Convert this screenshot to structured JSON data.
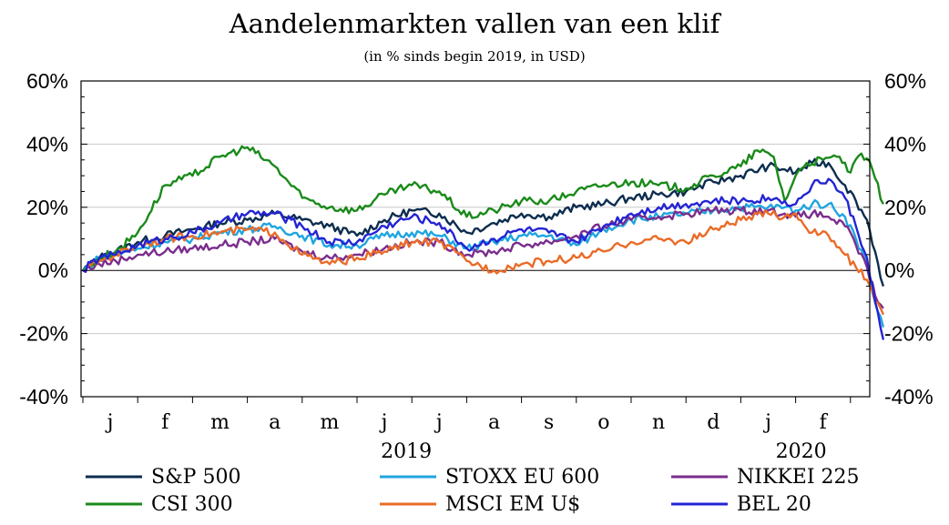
{
  "chart_data": {
    "type": "line",
    "title": "Aandelenmarkten vallen van een klif",
    "subtitle": "(in % sinds begin 2019, in USD)",
    "xlabel": "",
    "ylabel": "",
    "ylim": [
      -40,
      60
    ],
    "y_ticks": [
      60,
      40,
      20,
      0,
      -20,
      -40
    ],
    "y_tick_labels": [
      "60%",
      "40%",
      "20%",
      "0%",
      "-20%",
      "-40%"
    ],
    "grid": true,
    "legend_position": "bottom",
    "month_labels": [
      "j",
      "f",
      "m",
      "a",
      "m",
      "j",
      "j",
      "a",
      "s",
      "o",
      "n",
      "d",
      "j",
      "f"
    ],
    "year_labels": [
      "2019",
      "2020"
    ],
    "x_month_range": [
      0,
      14.6
    ],
    "series": [
      {
        "name": "S&P 500",
        "color": "#0d2d4f",
        "x": [
          0.0,
          0.3,
          0.6,
          1.0,
          1.5,
          2.0,
          2.5,
          3.0,
          3.5,
          4.0,
          4.5,
          5.0,
          5.5,
          6.0,
          6.5,
          7.0,
          7.5,
          8.0,
          8.5,
          9.0,
          9.5,
          10.0,
          10.5,
          11.0,
          11.5,
          12.0,
          12.5,
          12.8,
          13.0,
          13.3,
          13.6,
          13.9,
          14.1,
          14.3,
          14.45,
          14.6
        ],
        "y": [
          0,
          4,
          6,
          9,
          11,
          13,
          15,
          16,
          18,
          16,
          14,
          11,
          16,
          19,
          18,
          12,
          15,
          18,
          17,
          20,
          21,
          23,
          24,
          25,
          28,
          30,
          33,
          32,
          31,
          34,
          34,
          27,
          22,
          16,
          6,
          -5
        ]
      },
      {
        "name": "STOXX EU 600",
        "color": "#1fa5e0",
        "x": [
          0.0,
          0.3,
          0.6,
          1.0,
          1.5,
          2.0,
          2.5,
          3.0,
          3.5,
          4.0,
          4.5,
          5.0,
          5.5,
          6.0,
          6.5,
          7.0,
          7.5,
          8.0,
          8.5,
          9.0,
          9.5,
          10.0,
          10.5,
          11.0,
          11.5,
          12.0,
          12.5,
          12.8,
          13.0,
          13.3,
          13.6,
          13.9,
          14.1,
          14.3,
          14.45,
          14.6
        ],
        "y": [
          0,
          4,
          5,
          7,
          9,
          10,
          12,
          13,
          14,
          11,
          8,
          8,
          11,
          12,
          11,
          7,
          9,
          11,
          11,
          8,
          13,
          16,
          17,
          18,
          19,
          20,
          20,
          20,
          19,
          21,
          21,
          17,
          10,
          2,
          -10,
          -18
        ]
      },
      {
        "name": "NIKKEI 225",
        "color": "#7b2d8e",
        "x": [
          0.0,
          0.3,
          0.6,
          1.0,
          1.5,
          2.0,
          2.5,
          3.0,
          3.5,
          4.0,
          4.5,
          5.0,
          5.5,
          6.0,
          6.5,
          7.0,
          7.5,
          8.0,
          8.5,
          9.0,
          9.5,
          10.0,
          10.5,
          11.0,
          11.5,
          12.0,
          12.5,
          12.8,
          13.0,
          13.3,
          13.6,
          13.9,
          14.1,
          14.3,
          14.45,
          14.6
        ],
        "y": [
          0,
          2,
          3,
          5,
          6,
          7,
          8,
          9,
          10,
          6,
          4,
          5,
          7,
          9,
          9,
          5,
          6,
          8,
          9,
          11,
          14,
          16,
          17,
          18,
          19,
          19,
          19,
          18,
          17,
          18,
          17,
          14,
          8,
          1,
          -8,
          -12
        ]
      },
      {
        "name": "CSI 300",
        "color": "#1a8a1a",
        "x": [
          0.0,
          0.3,
          0.6,
          1.0,
          1.5,
          2.0,
          2.5,
          3.0,
          3.5,
          4.0,
          4.5,
          5.0,
          5.5,
          6.0,
          6.5,
          7.0,
          7.5,
          8.0,
          8.5,
          9.0,
          9.5,
          10.0,
          10.5,
          11.0,
          11.5,
          12.0,
          12.3,
          12.6,
          12.8,
          13.0,
          13.2,
          13.5,
          13.8,
          14.0,
          14.2,
          14.4,
          14.6
        ],
        "y": [
          0,
          4,
          6,
          12,
          27,
          30,
          36,
          39,
          33,
          23,
          20,
          19,
          24,
          27,
          25,
          17,
          19,
          22,
          22,
          25,
          27,
          28,
          27,
          26,
          30,
          33,
          38,
          36,
          22,
          30,
          34,
          35,
          36,
          31,
          37,
          32,
          21
        ]
      },
      {
        "name": "MSCI EM U$",
        "color": "#ea6b28",
        "x": [
          0.0,
          0.3,
          0.6,
          1.0,
          1.5,
          2.0,
          2.5,
          3.0,
          3.5,
          4.0,
          4.5,
          5.0,
          5.5,
          6.0,
          6.5,
          7.0,
          7.5,
          8.0,
          8.5,
          9.0,
          9.5,
          10.0,
          10.5,
          11.0,
          11.5,
          12.0,
          12.5,
          12.8,
          13.0,
          13.3,
          13.6,
          13.9,
          14.1,
          14.3,
          14.45,
          14.6
        ],
        "y": [
          0,
          3,
          5,
          8,
          10,
          11,
          12,
          13,
          12,
          5,
          2,
          4,
          6,
          9,
          9,
          3,
          0,
          2,
          3,
          4,
          6,
          9,
          10,
          9,
          13,
          16,
          18,
          17,
          18,
          12,
          11,
          5,
          1,
          -3,
          -10,
          -14
        ]
      },
      {
        "name": "BEL 20",
        "color": "#2424d4",
        "x": [
          0.0,
          0.3,
          0.6,
          1.0,
          1.5,
          2.0,
          2.5,
          3.0,
          3.5,
          4.0,
          4.5,
          5.0,
          5.5,
          6.0,
          6.5,
          7.0,
          7.5,
          8.0,
          8.5,
          9.0,
          9.5,
          10.0,
          10.5,
          11.0,
          11.5,
          12.0,
          12.5,
          12.8,
          13.0,
          13.3,
          13.6,
          13.9,
          14.1,
          14.3,
          14.45,
          14.6
        ],
        "y": [
          0,
          4,
          5,
          8,
          10,
          12,
          15,
          18,
          18,
          14,
          9,
          9,
          14,
          17,
          15,
          7,
          10,
          13,
          12,
          9,
          14,
          18,
          20,
          21,
          22,
          22,
          23,
          22,
          21,
          27,
          29,
          23,
          14,
          4,
          -10,
          -22
        ]
      }
    ]
  }
}
